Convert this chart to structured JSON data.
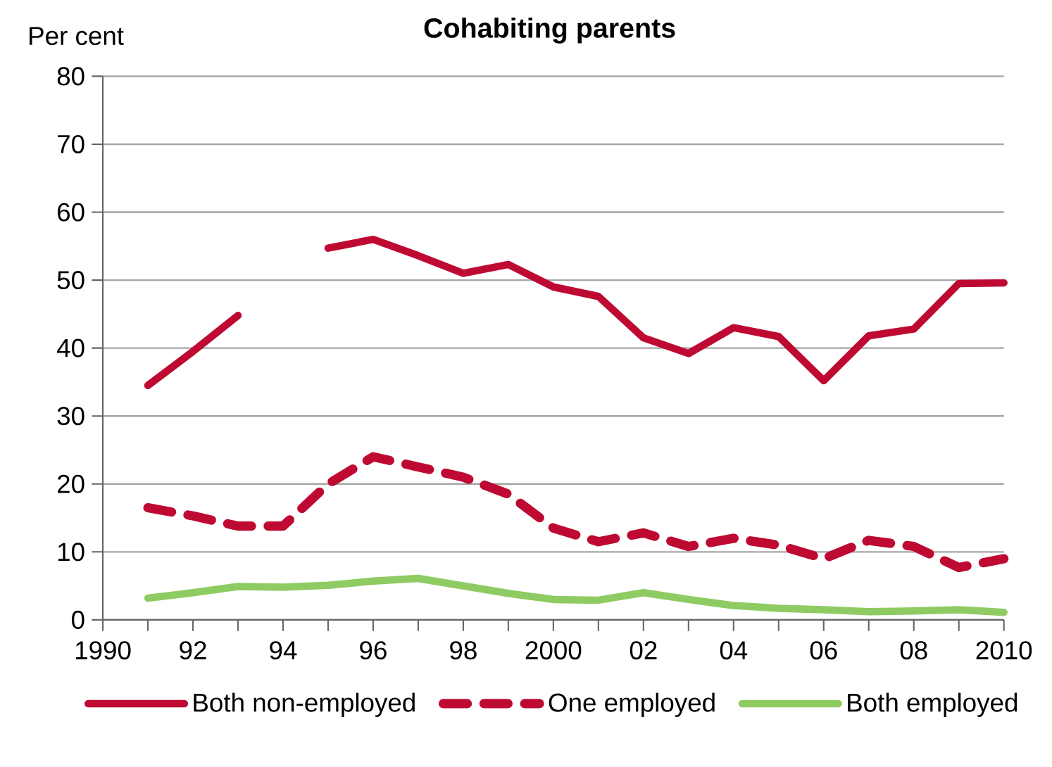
{
  "chart_data": {
    "type": "line",
    "title": "Cohabiting parents",
    "ylabel": "Per cent",
    "x": [
      1991,
      1992,
      1993,
      1994,
      1995,
      1996,
      1997,
      1998,
      1999,
      2000,
      2001,
      2002,
      2003,
      2004,
      2005,
      2006,
      2007,
      2008,
      2009,
      2010
    ],
    "series": [
      {
        "name": "Both non-employed",
        "color": "#be0a32",
        "line_style": "solid",
        "values": [
          34.5,
          39.5,
          44.8,
          null,
          54.7,
          56,
          53.6,
          51,
          52.3,
          49,
          47.6,
          41.5,
          39.2,
          43,
          41.7,
          35.2,
          41.8,
          42.8,
          49.5,
          49.6
        ]
      },
      {
        "name": "One employed",
        "color": "#be0a32",
        "line_style": "dashed",
        "values": [
          16.5,
          15.3,
          13.8,
          13.8,
          20,
          24,
          22.5,
          21,
          18.5,
          13.5,
          11.5,
          12.8,
          10.8,
          12,
          11,
          9,
          11.7,
          10.8,
          7.7,
          9
        ]
      },
      {
        "name": "Both employed",
        "color": "#8fcb63",
        "line_style": "solid",
        "values": [
          3.2,
          4,
          4.9,
          4.8,
          5.1,
          5.7,
          6.1,
          5,
          3.9,
          3,
          2.9,
          4,
          3,
          2.1,
          1.7,
          1.5,
          1.2,
          1.3,
          1.5,
          1.1
        ]
      }
    ],
    "xlim": [
      1990,
      2010
    ],
    "xticks": [
      {
        "value": 1990,
        "label": "1990"
      },
      {
        "value": 1991,
        "label": null
      },
      {
        "value": 1992,
        "label": "92"
      },
      {
        "value": 1993,
        "label": null
      },
      {
        "value": 1994,
        "label": "94"
      },
      {
        "value": 1995,
        "label": null
      },
      {
        "value": 1996,
        "label": "96"
      },
      {
        "value": 1997,
        "label": null
      },
      {
        "value": 1998,
        "label": "98"
      },
      {
        "value": 1999,
        "label": null
      },
      {
        "value": 2000,
        "label": "2000"
      },
      {
        "value": 2001,
        "label": null
      },
      {
        "value": 2002,
        "label": "02"
      },
      {
        "value": 2003,
        "label": null
      },
      {
        "value": 2004,
        "label": "04"
      },
      {
        "value": 2005,
        "label": null
      },
      {
        "value": 2006,
        "label": "06"
      },
      {
        "value": 2007,
        "label": null
      },
      {
        "value": 2008,
        "label": "08"
      },
      {
        "value": 2009,
        "label": null
      },
      {
        "value": 2010,
        "label": "2010"
      }
    ],
    "ylim": [
      0,
      80
    ],
    "yticks": [
      0,
      10,
      20,
      30,
      40,
      50,
      60,
      70,
      80
    ],
    "grid": "y",
    "legend": "bottom",
    "marker": "none"
  }
}
